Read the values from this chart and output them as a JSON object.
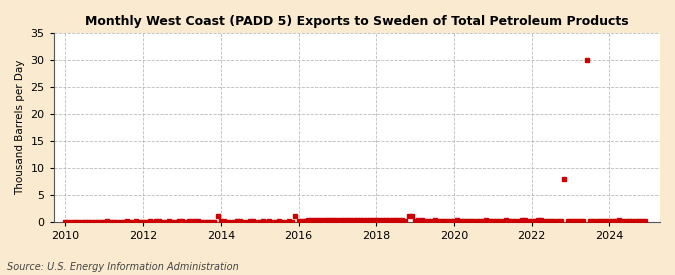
{
  "title": "Monthly West Coast (PADD 5) Exports to Sweden of Total Petroleum Products",
  "ylabel": "Thousand Barrels per Day",
  "source": "Source: U.S. Energy Information Administration",
  "background_color": "#faebd0",
  "plot_background_color": "#ffffff",
  "marker_color": "#cc0000",
  "ylim": [
    0,
    35
  ],
  "yticks": [
    0,
    5,
    10,
    15,
    20,
    25,
    30,
    35
  ],
  "xlim_start": 2009.7,
  "xlim_end": 2025.3,
  "xticks": [
    2010,
    2012,
    2014,
    2016,
    2018,
    2020,
    2022,
    2024
  ],
  "data_points": [
    [
      2010.0,
      0
    ],
    [
      2010.08,
      0
    ],
    [
      2010.17,
      0
    ],
    [
      2010.25,
      0
    ],
    [
      2010.33,
      0
    ],
    [
      2010.42,
      0
    ],
    [
      2010.5,
      0
    ],
    [
      2010.58,
      0
    ],
    [
      2010.67,
      0
    ],
    [
      2010.75,
      0
    ],
    [
      2010.83,
      0
    ],
    [
      2010.92,
      0
    ],
    [
      2011.0,
      0
    ],
    [
      2011.08,
      0.05
    ],
    [
      2011.17,
      0
    ],
    [
      2011.25,
      0
    ],
    [
      2011.33,
      0
    ],
    [
      2011.42,
      0
    ],
    [
      2011.5,
      0
    ],
    [
      2011.58,
      0.05
    ],
    [
      2011.67,
      0
    ],
    [
      2011.75,
      0
    ],
    [
      2011.83,
      0.05
    ],
    [
      2011.92,
      0
    ],
    [
      2012.0,
      0
    ],
    [
      2012.08,
      0
    ],
    [
      2012.17,
      0.05
    ],
    [
      2012.25,
      0
    ],
    [
      2012.33,
      0.05
    ],
    [
      2012.42,
      0.05
    ],
    [
      2012.5,
      0
    ],
    [
      2012.58,
      0
    ],
    [
      2012.67,
      0.05
    ],
    [
      2012.75,
      0
    ],
    [
      2012.83,
      0
    ],
    [
      2012.92,
      0.05
    ],
    [
      2013.0,
      0.05
    ],
    [
      2013.08,
      0
    ],
    [
      2013.17,
      0.05
    ],
    [
      2013.25,
      0.05
    ],
    [
      2013.33,
      0.05
    ],
    [
      2013.42,
      0.05
    ],
    [
      2013.5,
      0
    ],
    [
      2013.58,
      0
    ],
    [
      2013.67,
      0
    ],
    [
      2013.75,
      0
    ],
    [
      2013.83,
      0
    ],
    [
      2013.92,
      1.0
    ],
    [
      2014.0,
      0.05
    ],
    [
      2014.08,
      0.05
    ],
    [
      2014.17,
      0
    ],
    [
      2014.25,
      0
    ],
    [
      2014.33,
      0
    ],
    [
      2014.42,
      0.05
    ],
    [
      2014.5,
      0.05
    ],
    [
      2014.58,
      0
    ],
    [
      2014.67,
      0
    ],
    [
      2014.75,
      0.05
    ],
    [
      2014.83,
      0.05
    ],
    [
      2014.92,
      0
    ],
    [
      2015.0,
      0
    ],
    [
      2015.08,
      0.05
    ],
    [
      2015.17,
      0
    ],
    [
      2015.25,
      0.05
    ],
    [
      2015.33,
      0
    ],
    [
      2015.42,
      0
    ],
    [
      2015.5,
      0.05
    ],
    [
      2015.58,
      0
    ],
    [
      2015.67,
      0
    ],
    [
      2015.75,
      0.05
    ],
    [
      2015.83,
      0
    ],
    [
      2015.92,
      1.0
    ],
    [
      2016.0,
      0.05
    ],
    [
      2016.08,
      0.05
    ],
    [
      2016.17,
      0.05
    ],
    [
      2016.25,
      0.3
    ],
    [
      2016.33,
      0.3
    ],
    [
      2016.42,
      0.3
    ],
    [
      2016.5,
      0.3
    ],
    [
      2016.58,
      0.3
    ],
    [
      2016.67,
      0.3
    ],
    [
      2016.75,
      0.3
    ],
    [
      2016.83,
      0.3
    ],
    [
      2016.92,
      0.3
    ],
    [
      2017.0,
      0.3
    ],
    [
      2017.08,
      0.3
    ],
    [
      2017.17,
      0.3
    ],
    [
      2017.25,
      0.3
    ],
    [
      2017.33,
      0.3
    ],
    [
      2017.42,
      0.3
    ],
    [
      2017.5,
      0.3
    ],
    [
      2017.58,
      0.3
    ],
    [
      2017.67,
      0.3
    ],
    [
      2017.75,
      0.3
    ],
    [
      2017.83,
      0.3
    ],
    [
      2017.92,
      0.3
    ],
    [
      2018.0,
      0.3
    ],
    [
      2018.08,
      0.3
    ],
    [
      2018.17,
      0.3
    ],
    [
      2018.25,
      0.3
    ],
    [
      2018.33,
      0.3
    ],
    [
      2018.42,
      0.3
    ],
    [
      2018.5,
      0.3
    ],
    [
      2018.58,
      0.3
    ],
    [
      2018.67,
      0.3
    ],
    [
      2018.75,
      0.05
    ],
    [
      2018.83,
      1.0
    ],
    [
      2018.92,
      1.0
    ],
    [
      2019.0,
      0.05
    ],
    [
      2019.08,
      0.3
    ],
    [
      2019.17,
      0.3
    ],
    [
      2019.25,
      0.05
    ],
    [
      2019.33,
      0.05
    ],
    [
      2019.42,
      0.05
    ],
    [
      2019.5,
      0.3
    ],
    [
      2019.58,
      0.05
    ],
    [
      2019.67,
      0.05
    ],
    [
      2019.75,
      0.05
    ],
    [
      2019.83,
      0.05
    ],
    [
      2019.92,
      0.05
    ],
    [
      2020.0,
      0.05
    ],
    [
      2020.08,
      0.3
    ],
    [
      2020.17,
      0.05
    ],
    [
      2020.25,
      0.05
    ],
    [
      2020.33,
      0.05
    ],
    [
      2020.42,
      0.05
    ],
    [
      2020.5,
      0.05
    ],
    [
      2020.58,
      0.05
    ],
    [
      2020.67,
      0.05
    ],
    [
      2020.75,
      0.05
    ],
    [
      2020.83,
      0.3
    ],
    [
      2020.92,
      0.05
    ],
    [
      2021.0,
      0.05
    ],
    [
      2021.08,
      0.05
    ],
    [
      2021.17,
      0.05
    ],
    [
      2021.25,
      0.05
    ],
    [
      2021.33,
      0.3
    ],
    [
      2021.42,
      0.05
    ],
    [
      2021.5,
      0.05
    ],
    [
      2021.58,
      0.05
    ],
    [
      2021.67,
      0.05
    ],
    [
      2021.75,
      0.3
    ],
    [
      2021.83,
      0.3
    ],
    [
      2021.92,
      0.05
    ],
    [
      2022.0,
      0.05
    ],
    [
      2022.08,
      0.05
    ],
    [
      2022.17,
      0.3
    ],
    [
      2022.25,
      0.3
    ],
    [
      2022.33,
      0.05
    ],
    [
      2022.42,
      0.05
    ],
    [
      2022.5,
      0.05
    ],
    [
      2022.58,
      0.05
    ],
    [
      2022.67,
      0.05
    ],
    [
      2022.75,
      0.05
    ],
    [
      2022.83,
      8.0
    ],
    [
      2022.92,
      0.05
    ],
    [
      2023.0,
      0.05
    ],
    [
      2023.08,
      0.05
    ],
    [
      2023.17,
      0.05
    ],
    [
      2023.25,
      0.05
    ],
    [
      2023.33,
      0.05
    ],
    [
      2023.42,
      30.0
    ],
    [
      2023.5,
      0.05
    ],
    [
      2023.58,
      0.05
    ],
    [
      2023.67,
      0.05
    ],
    [
      2023.75,
      0.05
    ],
    [
      2023.83,
      0.05
    ],
    [
      2023.92,
      0.05
    ],
    [
      2024.0,
      0.05
    ],
    [
      2024.08,
      0.05
    ],
    [
      2024.17,
      0.05
    ],
    [
      2024.25,
      0.3
    ],
    [
      2024.33,
      0.05
    ],
    [
      2024.42,
      0.05
    ],
    [
      2024.5,
      0.05
    ],
    [
      2024.58,
      0.05
    ],
    [
      2024.67,
      0.05
    ],
    [
      2024.75,
      0.05
    ],
    [
      2024.83,
      0.05
    ],
    [
      2024.92,
      0.05
    ]
  ]
}
